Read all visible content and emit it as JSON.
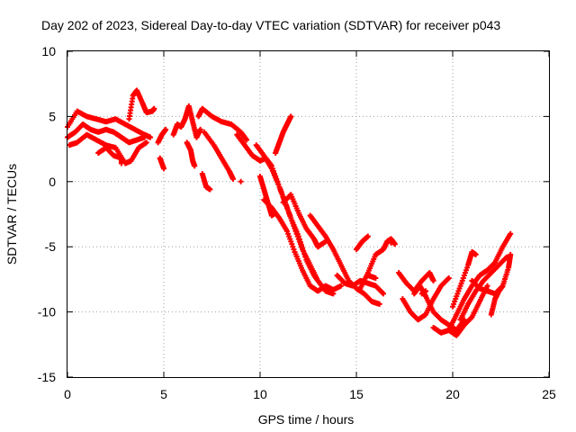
{
  "colors": {
    "series": "#ff0000",
    "grid": "#a0a0a0",
    "axis": "#000000",
    "background": "#ffffff"
  },
  "chart_data": {
    "type": "scatter",
    "title": "Day 202 of 2023, Sidereal Day-to-day VTEC variation (SDTVAR) for receiver p043",
    "xlabel": "GPS time / hours",
    "ylabel": "SDTVAR / TECUs",
    "xlim": [
      0,
      25
    ],
    "ylim": [
      -15,
      10
    ],
    "xticks": [
      0,
      5,
      10,
      15,
      20,
      25
    ],
    "yticks": [
      -15,
      -10,
      -5,
      0,
      5,
      10
    ],
    "xtick_labels": [
      "0",
      "5",
      "10",
      "15",
      "20",
      "25"
    ],
    "ytick_labels": [
      "-15",
      "-10",
      "-5",
      "0",
      "5",
      "10"
    ],
    "grid": true,
    "marker": "plus",
    "series": [
      {
        "name": "SDTVAR",
        "color": "#ff0000",
        "tracks": [
          [
            [
              0.0,
              4.2
            ],
            [
              0.5,
              5.4
            ],
            [
              1.0,
              5.0
            ],
            [
              1.5,
              4.8
            ],
            [
              2.0,
              4.6
            ],
            [
              2.5,
              4.8
            ],
            [
              3.0,
              4.4
            ],
            [
              3.5,
              4.0
            ],
            [
              4.0,
              3.6
            ],
            [
              4.3,
              3.4
            ]
          ],
          [
            [
              0.0,
              3.4
            ],
            [
              0.4,
              3.8
            ],
            [
              0.8,
              4.4
            ],
            [
              1.2,
              4.0
            ],
            [
              1.6,
              3.8
            ],
            [
              2.0,
              4.0
            ],
            [
              2.4,
              3.8
            ],
            [
              2.8,
              3.4
            ],
            [
              3.2,
              3.0
            ],
            [
              3.6,
              3.2
            ],
            [
              4.0,
              3.4
            ]
          ],
          [
            [
              0.1,
              2.8
            ],
            [
              0.5,
              3.0
            ],
            [
              1.0,
              3.6
            ],
            [
              1.5,
              3.2
            ],
            [
              2.0,
              2.8
            ],
            [
              2.5,
              2.6
            ],
            [
              3.0,
              1.4
            ],
            [
              3.3,
              1.6
            ],
            [
              3.7,
              2.6
            ],
            [
              4.1,
              3.0
            ]
          ],
          [
            [
              1.6,
              2.2
            ],
            [
              2.0,
              2.6
            ],
            [
              2.4,
              2.0
            ],
            [
              2.8,
              1.8
            ],
            [
              2.8,
              1.4
            ]
          ],
          [
            [
              3.2,
              4.8
            ],
            [
              3.4,
              6.6
            ],
            [
              3.6,
              7.0
            ],
            [
              3.9,
              6.0
            ],
            [
              4.1,
              5.3
            ],
            [
              4.4,
              5.4
            ],
            [
              4.5,
              5.6
            ]
          ],
          [
            [
              4.7,
              3.0
            ],
            [
              4.9,
              3.6
            ],
            [
              5.1,
              4.0
            ]
          ],
          [
            [
              4.8,
              1.8
            ],
            [
              5.0,
              1.0
            ]
          ],
          [
            [
              5.5,
              3.6
            ],
            [
              5.7,
              4.4
            ],
            [
              5.9,
              4.2
            ],
            [
              6.1,
              4.8
            ],
            [
              6.3,
              5.8
            ],
            [
              6.5,
              4.6
            ],
            [
              6.7,
              3.4
            ],
            [
              6.9,
              4.0
            ]
          ],
          [
            [
              6.2,
              3.0
            ],
            [
              6.4,
              2.4
            ],
            [
              6.5,
              1.6
            ],
            [
              6.6,
              1.2
            ]
          ],
          [
            [
              6.8,
              5.0
            ],
            [
              7.0,
              5.6
            ],
            [
              7.5,
              5.0
            ],
            [
              8.0,
              4.6
            ],
            [
              8.5,
              4.4
            ],
            [
              9.0,
              3.8
            ],
            [
              9.3,
              3.2
            ]
          ],
          [
            [
              7.1,
              3.8
            ],
            [
              7.6,
              2.8
            ],
            [
              8.0,
              1.8
            ],
            [
              8.4,
              0.8
            ],
            [
              8.6,
              0.2
            ]
          ],
          [
            [
              7.0,
              0.6
            ],
            [
              7.2,
              -0.4
            ],
            [
              7.4,
              -0.6
            ]
          ],
          [
            [
              9.0,
              0.0
            ]
          ],
          [
            [
              8.8,
              3.6
            ],
            [
              9.2,
              2.8
            ],
            [
              9.6,
              2.0
            ],
            [
              10.0,
              1.6
            ],
            [
              10.3,
              1.8
            ],
            [
              10.6,
              1.2
            ],
            [
              11.0,
              -0.4
            ],
            [
              11.4,
              -2.0
            ],
            [
              11.8,
              -3.6
            ],
            [
              12.2,
              -5.2
            ],
            [
              12.6,
              -6.4
            ],
            [
              13.0,
              -7.6
            ],
            [
              13.4,
              -8.4
            ],
            [
              13.8,
              -8.6
            ]
          ],
          [
            [
              9.8,
              2.8
            ],
            [
              10.2,
              2.0
            ],
            [
              10.6,
              1.0
            ],
            [
              11.0,
              -0.4
            ],
            [
              11.3,
              -1.6
            ],
            [
              11.6,
              -2.8
            ],
            [
              12.0,
              -4.2
            ],
            [
              12.4,
              -6.0
            ],
            [
              12.8,
              -7.2
            ],
            [
              13.2,
              -8.0
            ],
            [
              13.6,
              -8.4
            ]
          ],
          [
            [
              10.0,
              0.4
            ],
            [
              10.2,
              -0.6
            ],
            [
              10.4,
              -1.6
            ],
            [
              10.6,
              -2.6
            ],
            [
              10.8,
              -2.4
            ]
          ],
          [
            [
              10.2,
              -1.4
            ],
            [
              10.6,
              -2.0
            ],
            [
              11.0,
              -2.8
            ],
            [
              11.4,
              -3.8
            ],
            [
              11.8,
              -5.4
            ],
            [
              12.2,
              -6.8
            ],
            [
              12.6,
              -8.0
            ],
            [
              13.0,
              -8.4
            ],
            [
              13.4,
              -8.0
            ],
            [
              13.8,
              -8.3
            ],
            [
              14.2,
              -8.0
            ]
          ],
          [
            [
              10.8,
              2.2
            ],
            [
              11.0,
              3.0
            ],
            [
              11.2,
              3.8
            ],
            [
              11.4,
              4.4
            ],
            [
              11.6,
              5.0
            ]
          ],
          [
            [
              11.2,
              -1.6
            ],
            [
              11.6,
              -1.0
            ],
            [
              12.0,
              -2.4
            ],
            [
              12.4,
              -3.6
            ],
            [
              12.8,
              -4.4
            ],
            [
              13.0,
              -5.0
            ],
            [
              13.4,
              -4.6
            ]
          ],
          [
            [
              12.6,
              -2.6
            ],
            [
              13.0,
              -3.4
            ],
            [
              13.4,
              -4.2
            ],
            [
              13.8,
              -5.2
            ],
            [
              14.2,
              -6.4
            ],
            [
              14.6,
              -7.6
            ],
            [
              15.0,
              -8.2
            ],
            [
              15.4,
              -8.6
            ],
            [
              15.8,
              -9.2
            ],
            [
              16.2,
              -9.4
            ]
          ],
          [
            [
              14.0,
              -7.2
            ],
            [
              14.4,
              -7.8
            ],
            [
              14.8,
              -8.0
            ],
            [
              15.2,
              -7.6
            ],
            [
              15.6,
              -7.8
            ],
            [
              16.0,
              -8.0
            ],
            [
              16.4,
              -8.6
            ]
          ],
          [
            [
              15.2,
              -8.2
            ],
            [
              15.6,
              -7.0
            ],
            [
              16.0,
              -5.6
            ],
            [
              16.4,
              -5.2
            ],
            [
              16.6,
              -4.6
            ],
            [
              16.8,
              -4.4
            ],
            [
              17.0,
              -4.8
            ]
          ],
          [
            [
              15.0,
              -5.2
            ],
            [
              15.3,
              -4.6
            ],
            [
              15.6,
              -4.2
            ]
          ],
          [
            [
              17.2,
              -7.0
            ],
            [
              17.6,
              -7.8
            ],
            [
              18.0,
              -8.4
            ],
            [
              18.4,
              -7.6
            ],
            [
              18.8,
              -7.0
            ],
            [
              19.0,
              -7.6
            ]
          ],
          [
            [
              17.4,
              -9.0
            ],
            [
              17.8,
              -10.0
            ],
            [
              18.2,
              -10.6
            ],
            [
              18.6,
              -10.2
            ],
            [
              19.0,
              -9.0
            ],
            [
              19.4,
              -8.0
            ],
            [
              19.8,
              -7.4
            ]
          ],
          [
            [
              18.0,
              -8.6
            ],
            [
              18.3,
              -8.0
            ],
            [
              18.6,
              -8.8
            ],
            [
              19.0,
              -10.0
            ],
            [
              19.4,
              -10.6
            ],
            [
              19.8,
              -11.0
            ],
            [
              20.2,
              -11.4
            ],
            [
              20.6,
              -10.6
            ]
          ],
          [
            [
              19.0,
              -11.2
            ],
            [
              19.4,
              -11.6
            ],
            [
              19.8,
              -11.4
            ],
            [
              20.2,
              -11.8
            ],
            [
              20.6,
              -11.0
            ],
            [
              21.0,
              -10.4
            ],
            [
              21.4,
              -9.2
            ],
            [
              21.8,
              -8.0
            ]
          ],
          [
            [
              20.0,
              -9.6
            ],
            [
              20.4,
              -8.0
            ],
            [
              20.8,
              -6.4
            ],
            [
              21.0,
              -5.4
            ],
            [
              21.2,
              -5.6
            ]
          ],
          [
            [
              19.8,
              -11.4
            ],
            [
              20.2,
              -10.2
            ],
            [
              20.6,
              -9.0
            ],
            [
              21.0,
              -8.0
            ],
            [
              21.4,
              -7.2
            ],
            [
              21.8,
              -6.8
            ],
            [
              22.2,
              -6.2
            ],
            [
              22.6,
              -5.0
            ],
            [
              23.0,
              -4.0
            ]
          ],
          [
            [
              20.4,
              -10.6
            ],
            [
              20.8,
              -9.4
            ],
            [
              21.2,
              -8.4
            ],
            [
              21.6,
              -7.6
            ],
            [
              22.0,
              -7.0
            ],
            [
              22.4,
              -6.4
            ],
            [
              22.8,
              -5.8
            ]
          ],
          [
            [
              21.0,
              -7.6
            ],
            [
              21.4,
              -8.2
            ],
            [
              21.8,
              -8.4
            ],
            [
              22.2,
              -8.6
            ],
            [
              22.6,
              -8.0
            ],
            [
              22.9,
              -6.6
            ],
            [
              23.0,
              -5.6
            ]
          ],
          [
            [
              22.0,
              -10.2
            ],
            [
              22.2,
              -9.0
            ],
            [
              22.4,
              -8.4
            ],
            [
              22.6,
              -8.0
            ]
          ],
          [
            [
              16.8,
              -4.7
            ]
          ],
          [
            [
              18.4,
              -8.6
            ],
            [
              18.6,
              -8.4
            ]
          ],
          [
            [
              15.6,
              -7.2
            ],
            [
              16.0,
              -7.4
            ]
          ]
        ]
      }
    ]
  }
}
